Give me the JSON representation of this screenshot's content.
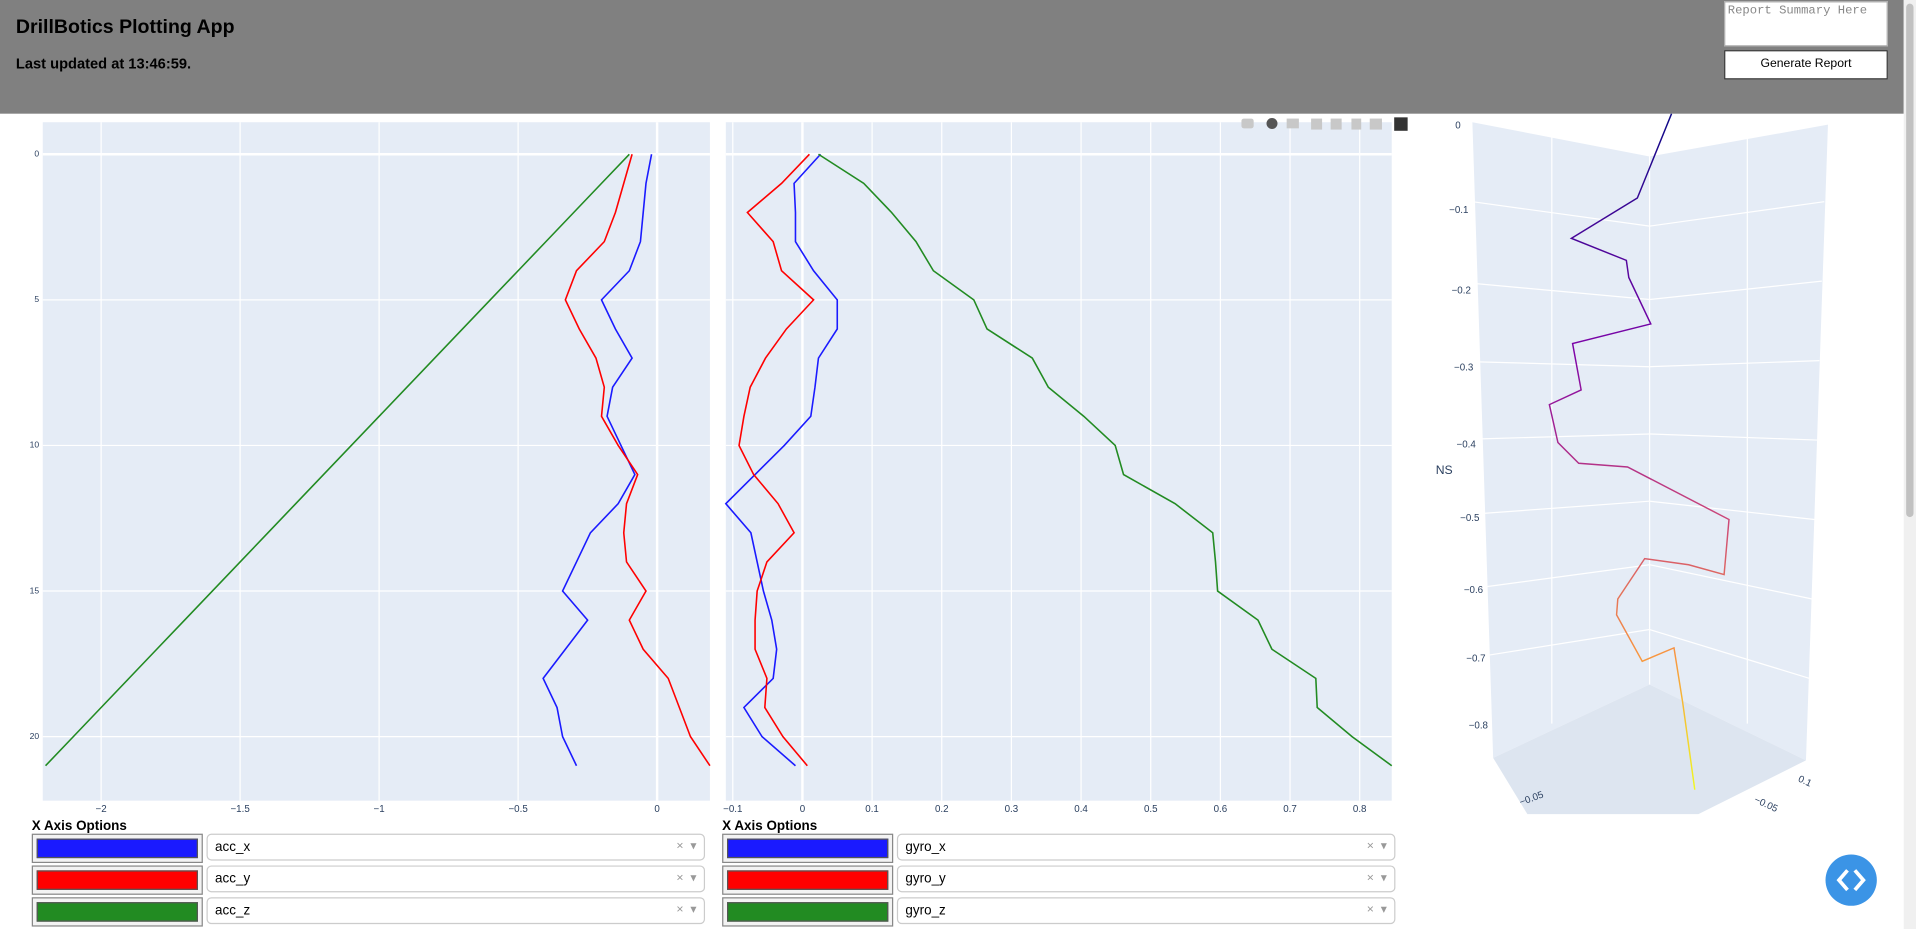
{
  "header": {
    "title": "DrillBotics Plotting App",
    "updated": "Last updated at 13:46:59.",
    "report_placeholder": "Report Summary Here",
    "button": "Generate Report"
  },
  "chart_data": [
    {
      "type": "line",
      "grid": true,
      "y": [
        0,
        1,
        2,
        3,
        4,
        5,
        6,
        7,
        8,
        9,
        10,
        11,
        12,
        13,
        14,
        15,
        16,
        17,
        18,
        19,
        20,
        21
      ],
      "ylim": [
        22.2,
        -1.1
      ],
      "yticks": [
        0,
        5,
        10,
        15,
        20
      ],
      "xlim": [
        -2.21,
        0.19
      ],
      "xticks": [
        {
          "value": -2,
          "label": "−2"
        },
        {
          "value": -1.5,
          "label": "−1.5"
        },
        {
          "value": -1,
          "label": "−1"
        },
        {
          "value": -0.5,
          "label": "−0.5"
        },
        0
      ],
      "series": [
        {
          "name": "acc_x",
          "color": "#1a1aff",
          "values": [
            -0.02,
            -0.04,
            -0.05,
            -0.06,
            -0.1,
            -0.2,
            -0.15,
            -0.09,
            -0.16,
            -0.18,
            -0.13,
            -0.08,
            -0.14,
            -0.24,
            -0.29,
            -0.34,
            -0.25,
            -0.33,
            -0.41,
            -0.36,
            -0.34,
            -0.29
          ]
        },
        {
          "name": "acc_y",
          "color": "#ff0000",
          "values": [
            -0.09,
            -0.12,
            -0.15,
            -0.19,
            -0.29,
            -0.33,
            -0.28,
            -0.22,
            -0.19,
            -0.2,
            -0.14,
            -0.07,
            -0.11,
            -0.12,
            -0.11,
            -0.04,
            -0.1,
            -0.05,
            0.04,
            0.08,
            0.12,
            0.19
          ]
        },
        {
          "name": "acc_z",
          "color": "#228b22",
          "values": [
            -0.1,
            -0.2,
            -0.3,
            -0.4,
            -0.5,
            -0.6,
            -0.7,
            -0.8,
            -0.9,
            -1.0,
            -1.1,
            -1.2,
            -1.3,
            -1.4,
            -1.5,
            -1.6,
            -1.7,
            -1.8,
            -1.9,
            -2.0,
            -2.1,
            -2.2
          ]
        }
      ]
    },
    {
      "type": "line",
      "grid": true,
      "y": [
        0,
        1,
        2,
        3,
        4,
        5,
        6,
        7,
        8,
        9,
        10,
        11,
        12,
        13,
        14,
        15,
        16,
        17,
        18,
        19,
        20,
        21
      ],
      "ylim": [
        22.2,
        -1.1
      ],
      "yticks": [
        0,
        5,
        10,
        15,
        20
      ],
      "xlim": [
        -0.11,
        0.846
      ],
      "xticks": [
        {
          "value": -0.1,
          "label": "−0.1"
        },
        0,
        0.1,
        0.2,
        0.3,
        0.4,
        0.5,
        0.6,
        0.7,
        0.8
      ],
      "series": [
        {
          "name": "gyro_x",
          "color": "#1a1aff",
          "values": [
            0.026,
            -0.012,
            -0.01,
            -0.01,
            0.016,
            0.05,
            0.05,
            0.023,
            0.018,
            0.012,
            -0.026,
            -0.068,
            -0.11,
            -0.074,
            -0.065,
            -0.056,
            -0.044,
            -0.037,
            -0.042,
            -0.084,
            -0.058,
            -0.01
          ]
        },
        {
          "name": "gyro_y",
          "color": "#ff0000",
          "values": [
            0.01,
            -0.03,
            -0.079,
            -0.042,
            -0.03,
            0.016,
            -0.023,
            -0.053,
            -0.075,
            -0.084,
            -0.091,
            -0.07,
            -0.035,
            -0.012,
            -0.051,
            -0.065,
            -0.068,
            -0.068,
            -0.051,
            -0.054,
            -0.028,
            0.007
          ]
        },
        {
          "name": "gyro_z",
          "color": "#228b22",
          "values": [
            0.023,
            0.088,
            0.128,
            0.163,
            0.188,
            0.246,
            0.265,
            0.33,
            0.353,
            0.404,
            0.449,
            0.461,
            0.535,
            0.589,
            0.593,
            0.596,
            0.654,
            0.674,
            0.737,
            0.739,
            0.789,
            0.846
          ]
        }
      ]
    }
  ],
  "plot3d": {
    "axis_title": "NS",
    "z_ticks": [
      "0",
      "−0.1",
      "−0.2",
      "−0.3",
      "−0.4",
      "−0.5",
      "−0.6",
      "−0.7",
      "−0.8"
    ],
    "x_ticks": [
      "0.1",
      "−0.05"
    ],
    "y_ticks": [
      "−0.05"
    ]
  },
  "controls": [
    {
      "title": "X Axis Options"
    },
    {
      "title": "X Axis Options"
    }
  ]
}
